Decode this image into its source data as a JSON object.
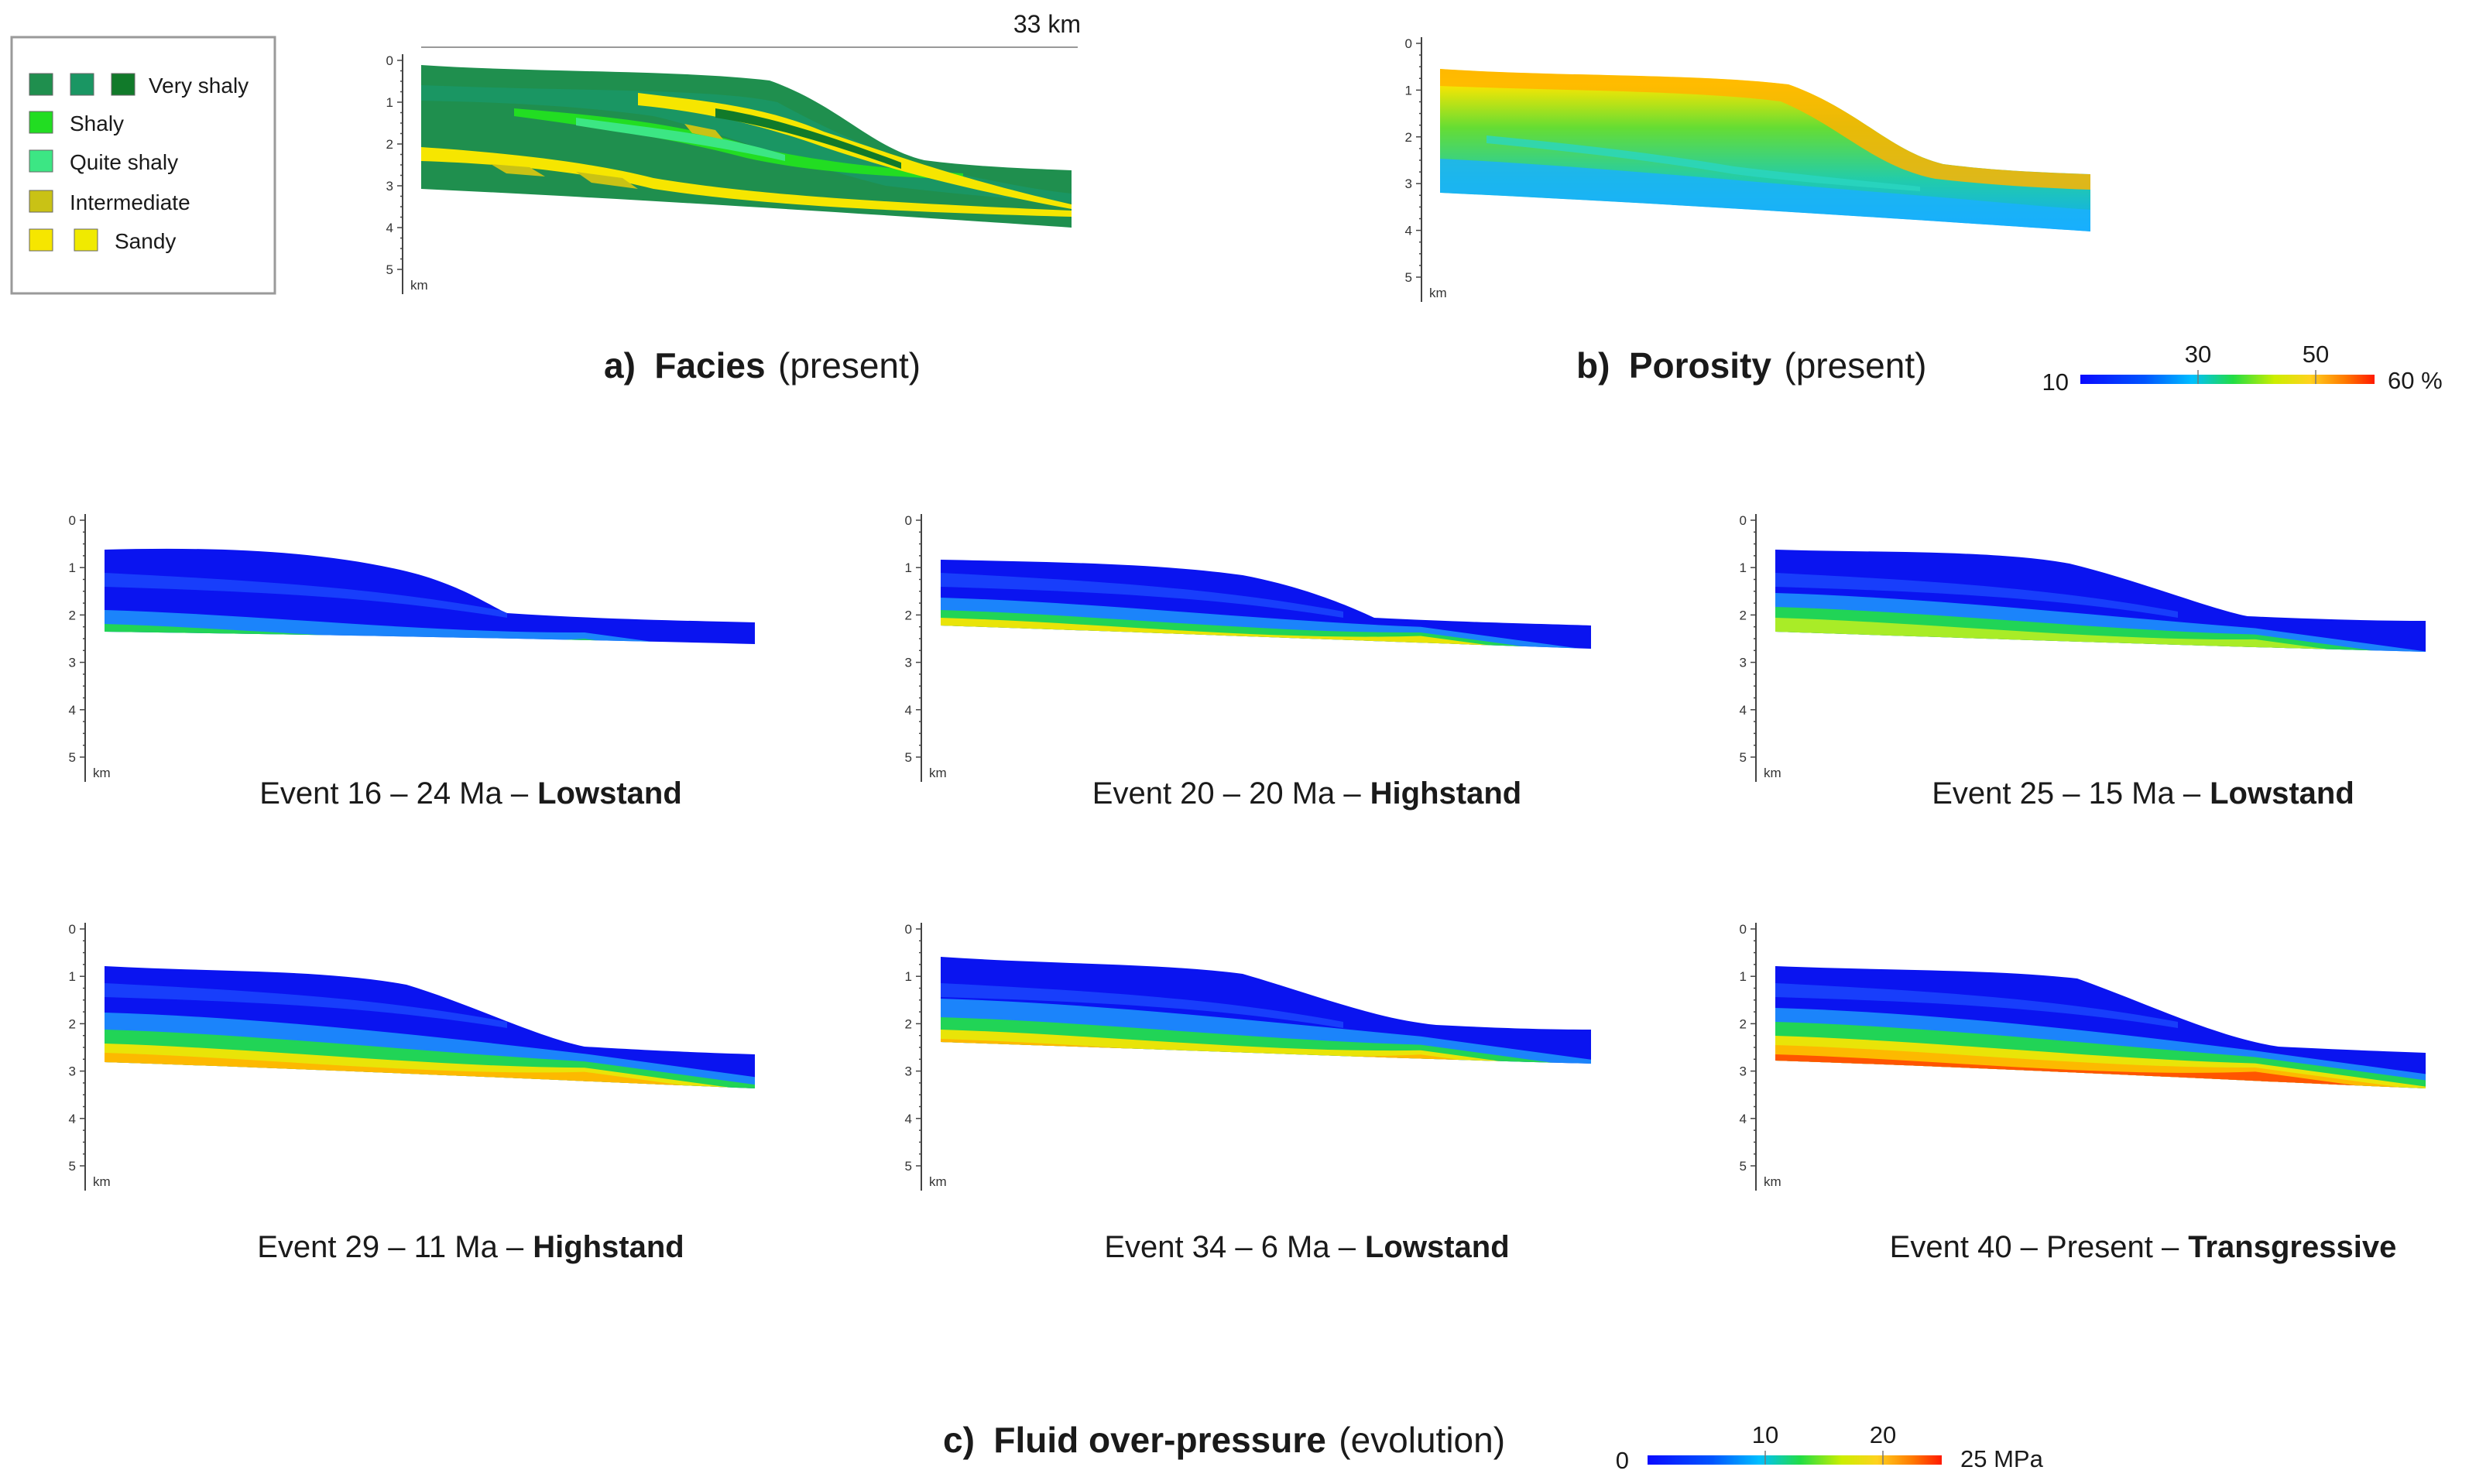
{
  "legend": {
    "items": [
      {
        "label": "Very shaly",
        "colors": [
          "#1f8f4e",
          "#1a9663",
          "#117a2a"
        ]
      },
      {
        "label": "Shaly",
        "colors": [
          "#22dd22"
        ]
      },
      {
        "label": "Quite shaly",
        "colors": [
          "#3ce684"
        ]
      },
      {
        "label": "Intermediate",
        "colors": [
          "#c9c215"
        ]
      },
      {
        "label": "Sandy",
        "colors": [
          "#f6e600",
          "#f0ea00"
        ]
      }
    ]
  },
  "axis": {
    "ticks": [
      "0",
      "1",
      "2",
      "3",
      "4",
      "5"
    ],
    "unit": "km"
  },
  "panel_a": {
    "scale_label": "33 km",
    "caption_prefix": "a)",
    "caption_bold": "Facies",
    "caption_normal": "(present)"
  },
  "panel_b": {
    "caption_prefix": "b)",
    "caption_bold": "Porosity",
    "caption_normal": "(present)",
    "colorbar": {
      "min_label": "10",
      "max_label": "60 %",
      "tick_labels": [
        "30",
        "50"
      ],
      "tick_values": [
        30,
        50
      ],
      "min": 10,
      "max": 60
    }
  },
  "panel_c": {
    "caption_prefix": "c)",
    "caption_bold": "Fluid over-pressure",
    "caption_normal": "(evolution)",
    "colorbar": {
      "min_label": "0",
      "max_label": "25 MPa",
      "tick_labels": [
        "10",
        "20"
      ],
      "tick_values": [
        10,
        20
      ],
      "min": 0,
      "max": 25
    },
    "events": [
      {
        "normal": "Event 16 – 24 Ma –",
        "bold": "Lowstand"
      },
      {
        "normal": "Event 20 – 20 Ma –",
        "bold": "Highstand"
      },
      {
        "normal": "Event 25 – 15 Ma –",
        "bold": "Lowstand"
      },
      {
        "normal": "Event 29 – 11 Ma –",
        "bold": "Highstand"
      },
      {
        "normal": "Event 34 – 6 Ma –",
        "bold": "Lowstand"
      },
      {
        "normal": "Event 40 – Present –",
        "bold": "Transgressive"
      }
    ]
  },
  "colors": {
    "very_shaly": "#1f8f4e",
    "shaly": "#22dd22",
    "quite_shaly": "#3ce684",
    "intermediate": "#c9c215",
    "sandy": "#f6e600",
    "pressure_low": "#0a14f0",
    "pressure_high": "#f01e0a"
  }
}
